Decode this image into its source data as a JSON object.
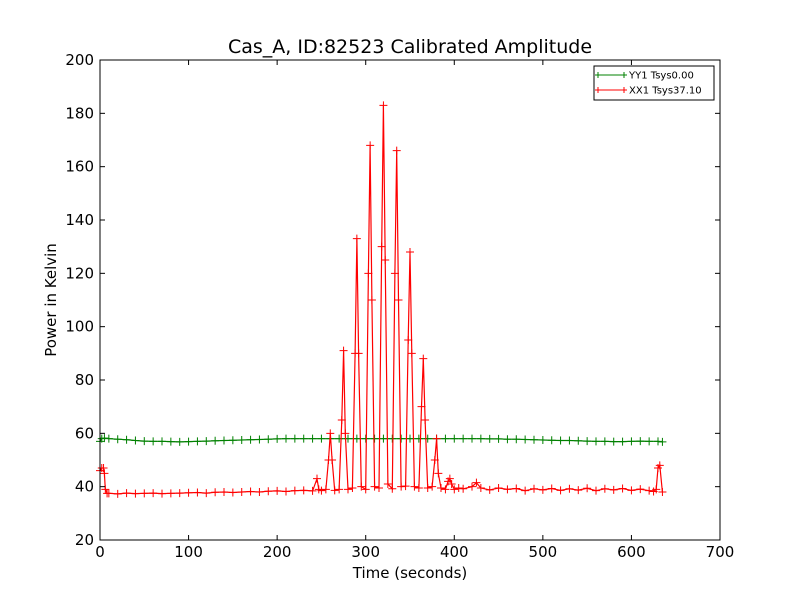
{
  "chart_data": {
    "type": "line",
    "title": "Cas_A, ID:82523 Calibrated Amplitude",
    "xlabel": "Time (seconds)",
    "ylabel": "Power in Kelvin",
    "xlim": [
      0,
      700
    ],
    "ylim": [
      20,
      200
    ],
    "xticks": [
      0,
      100,
      200,
      300,
      400,
      500,
      600,
      700
    ],
    "yticks": [
      20,
      40,
      60,
      80,
      100,
      120,
      140,
      160,
      180,
      200
    ],
    "grid": false,
    "legend_position": "top-right",
    "series": [
      {
        "name": "YY1 Tsys0.00",
        "color": "#008000",
        "marker": "+",
        "x": [
          0,
          2,
          5,
          10,
          20,
          30,
          40,
          50,
          60,
          70,
          80,
          90,
          100,
          110,
          120,
          130,
          140,
          150,
          160,
          170,
          180,
          190,
          200,
          210,
          220,
          230,
          240,
          250,
          260,
          270,
          280,
          290,
          300,
          310,
          320,
          330,
          340,
          350,
          360,
          370,
          380,
          390,
          400,
          410,
          420,
          430,
          440,
          450,
          460,
          470,
          480,
          490,
          500,
          510,
          520,
          530,
          540,
          550,
          560,
          570,
          580,
          590,
          600,
          610,
          620,
          630,
          635
        ],
        "y": [
          57,
          58,
          58.2,
          58,
          57.8,
          57.6,
          57.3,
          57.1,
          57,
          57,
          56.9,
          56.8,
          56.9,
          57,
          57.1,
          57.2,
          57.3,
          57.4,
          57.5,
          57.6,
          57.7,
          57.8,
          57.9,
          58,
          58,
          58,
          58,
          58,
          58,
          58,
          58,
          58,
          58,
          58,
          58,
          58,
          58,
          58,
          58,
          58,
          58,
          58,
          58,
          58,
          58,
          58,
          57.9,
          57.9,
          57.8,
          57.8,
          57.7,
          57.6,
          57.5,
          57.4,
          57.3,
          57.3,
          57.2,
          57.1,
          57,
          57,
          56.9,
          56.9,
          57,
          57.1,
          57,
          57,
          56.8
        ]
      },
      {
        "name": "XX1 Tsys37.10",
        "color": "#ff0000",
        "marker": "+",
        "x": [
          0,
          2,
          4,
          5,
          6,
          8,
          10,
          20,
          30,
          40,
          50,
          60,
          70,
          80,
          90,
          100,
          110,
          120,
          130,
          140,
          150,
          160,
          170,
          180,
          190,
          200,
          210,
          220,
          230,
          240,
          245,
          247,
          250,
          255,
          258,
          260,
          262,
          265,
          270,
          273,
          275,
          277,
          280,
          285,
          288,
          290,
          292,
          295,
          300,
          303,
          305,
          307,
          310,
          315,
          318,
          320,
          322,
          325,
          330,
          333,
          335,
          337,
          340,
          345,
          348,
          350,
          352,
          355,
          360,
          363,
          365,
          367,
          370,
          375,
          378,
          380,
          382,
          385,
          390,
          393,
          395,
          397,
          400,
          405,
          410,
          420,
          425,
          430,
          440,
          450,
          460,
          470,
          480,
          490,
          500,
          510,
          520,
          530,
          540,
          550,
          560,
          570,
          580,
          590,
          600,
          610,
          620,
          625,
          628,
          630,
          632,
          635
        ],
        "y": [
          46,
          47,
          47,
          45,
          39,
          37.5,
          37.5,
          37.3,
          37.6,
          37.4,
          37.5,
          37.6,
          37.4,
          37.5,
          37.6,
          37.7,
          37.8,
          37.6,
          37.9,
          38,
          37.8,
          38,
          38.2,
          38,
          38.3,
          38.4,
          38.2,
          38.5,
          38.6,
          38.4,
          43,
          39,
          38.5,
          39,
          50,
          60,
          50,
          38.6,
          39,
          65,
          91,
          60,
          39,
          39.5,
          90,
          133,
          90,
          40,
          39,
          120,
          168,
          110,
          40,
          39.5,
          130,
          183,
          125,
          41,
          39.2,
          120,
          166,
          110,
          40,
          40.2,
          95,
          128,
          90,
          40,
          39.5,
          70,
          88,
          65,
          39.5,
          40,
          50,
          58,
          45,
          39.5,
          39,
          42,
          43,
          41,
          39,
          39.5,
          39.2,
          40,
          41.5,
          39.5,
          38.8,
          39.5,
          39,
          39.3,
          38.5,
          39.2,
          38.8,
          39.3,
          38.6,
          39.2,
          38.7,
          39.4,
          38.5,
          39.2,
          38.8,
          39.3,
          38.6,
          39.1,
          38.5,
          38.2,
          39,
          47,
          48,
          38
        ]
      }
    ]
  }
}
